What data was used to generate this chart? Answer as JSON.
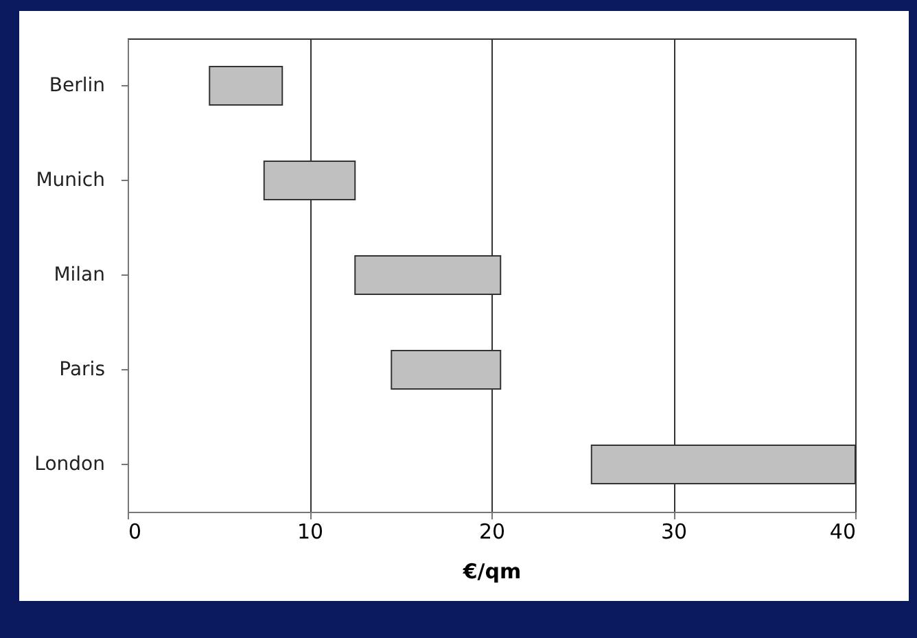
{
  "chart_data": {
    "type": "bar",
    "orientation": "horizontal",
    "xlabel": "€/qm",
    "categories": [
      "Berlin",
      "Munich",
      "Milan",
      "Paris",
      "London"
    ],
    "base": [
      4.5,
      7.5,
      12.5,
      14.5,
      25.5
    ],
    "values": [
      4,
      5,
      8,
      6,
      14.5
    ],
    "color": "#c0c0c0",
    "xlim": [
      0,
      40
    ],
    "xticks": [
      0,
      10,
      20,
      30,
      40
    ],
    "grid": "x"
  }
}
